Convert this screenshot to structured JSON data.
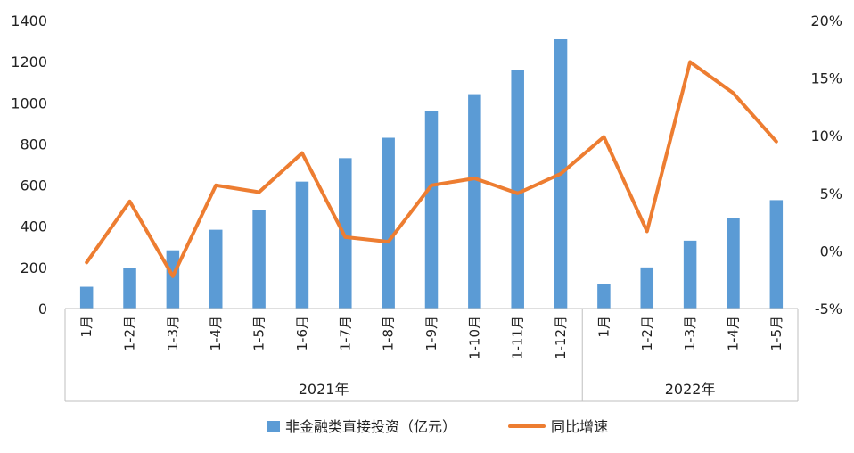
{
  "chart_data": {
    "type": "bar+line",
    "years": [
      {
        "label": "2021年",
        "categories": [
          "1月",
          "1-2月",
          "1-3月",
          "1-4月",
          "1-5月",
          "1-6月",
          "1-7月",
          "1-8月",
          "1-9月",
          "1-10月",
          "1-11月",
          "1-12月"
        ]
      },
      {
        "label": "2022年",
        "categories": [
          "1月",
          "1-2月",
          "1-3月",
          "1-4月",
          "1-5月"
        ]
      }
    ],
    "series": [
      {
        "name": "非金融类直接投资（亿元）",
        "type": "bar",
        "axis": "left",
        "color": "#5B9BD5",
        "values": [
          106,
          196,
          283,
          383,
          478,
          617,
          731,
          830,
          961,
          1042,
          1161,
          1309,
          119,
          200,
          330,
          440,
          527
        ]
      },
      {
        "name": "同比增速",
        "type": "line",
        "axis": "right",
        "color": "#ED7D31",
        "values": [
          -1.0,
          4.3,
          -2.2,
          5.7,
          5.1,
          8.5,
          1.2,
          0.8,
          5.7,
          6.3,
          5.0,
          6.7,
          9.9,
          1.7,
          16.4,
          13.7,
          9.5
        ]
      }
    ],
    "left_axis": {
      "min": 0,
      "max": 1400,
      "ticks": [
        0,
        200,
        400,
        600,
        800,
        1000,
        1200,
        1400
      ]
    },
    "right_axis": {
      "min": -5,
      "max": 20,
      "ticks": [
        "-5%",
        "0%",
        "5%",
        "10%",
        "15%",
        "20%"
      ]
    },
    "grid": false,
    "legend_position": "bottom"
  }
}
